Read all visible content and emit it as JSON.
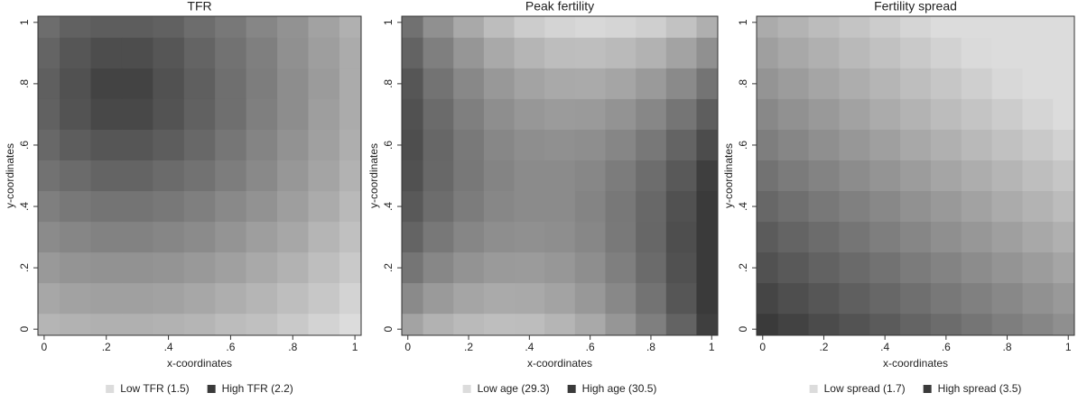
{
  "chart_data": [
    {
      "type": "contour",
      "title": "TFR",
      "xlabel": "x-coordinates",
      "ylabel": "y-coordinates",
      "xlim": [
        -0.02,
        1.02
      ],
      "ylim": [
        -0.02,
        1.02
      ],
      "xticks": [
        0,
        {
          "value": 0.2,
          "label": ".2"
        },
        {
          "value": 0.4,
          "label": ".4"
        },
        {
          "value": 0.6,
          "label": ".6"
        },
        {
          "value": 0.8,
          "label": ".8"
        },
        1
      ],
      "yticks": [
        0,
        {
          "value": 0.2,
          "label": ".2"
        },
        {
          "value": 0.4,
          "label": ".4"
        },
        {
          "value": 0.6,
          "label": ".6"
        },
        {
          "value": 0.8,
          "label": ".8"
        },
        1
      ],
      "zlim": [
        1.5,
        2.2
      ],
      "colors": [
        "#dcdcdc",
        "#3a3a3a"
      ],
      "legend": [
        {
          "label": "Low TFR (1.5)",
          "color": "#dcdcdc"
        },
        {
          "label": "High TFR (2.2)",
          "color": "#3a3a3a"
        }
      ],
      "x": [
        0,
        0.1,
        0.2,
        0.3,
        0.4,
        0.5,
        0.6,
        0.7,
        0.8,
        0.9,
        1
      ],
      "y": [
        1,
        0.9,
        0.8,
        0.7,
        0.6,
        0.5,
        0.4,
        0.3,
        0.2,
        0.1,
        0
      ],
      "z": [
        [
          1.98,
          2.03,
          2.05,
          2.05,
          2.03,
          1.98,
          1.93,
          1.87,
          1.82,
          1.75,
          1.69
        ],
        [
          2.02,
          2.08,
          2.12,
          2.12,
          2.08,
          2.02,
          1.96,
          1.9,
          1.83,
          1.77,
          1.71
        ],
        [
          2.04,
          2.1,
          2.16,
          2.16,
          2.1,
          2.04,
          1.97,
          1.91,
          1.84,
          1.78,
          1.71
        ],
        [
          2.03,
          2.09,
          2.14,
          2.14,
          2.09,
          2.03,
          1.97,
          1.9,
          1.84,
          1.77,
          1.71
        ],
        [
          2.0,
          2.05,
          2.08,
          2.08,
          2.05,
          2.0,
          1.94,
          1.88,
          1.82,
          1.76,
          1.7
        ],
        [
          1.96,
          1.99,
          2.02,
          2.02,
          1.99,
          1.96,
          1.91,
          1.86,
          1.8,
          1.74,
          1.68
        ],
        [
          1.9,
          1.93,
          1.95,
          1.95,
          1.93,
          1.9,
          1.86,
          1.82,
          1.77,
          1.71,
          1.65
        ],
        [
          1.85,
          1.87,
          1.89,
          1.89,
          1.87,
          1.85,
          1.81,
          1.77,
          1.73,
          1.67,
          1.62
        ],
        [
          1.79,
          1.81,
          1.82,
          1.82,
          1.81,
          1.79,
          1.76,
          1.72,
          1.68,
          1.63,
          1.58
        ],
        [
          1.73,
          1.75,
          1.76,
          1.76,
          1.75,
          1.73,
          1.7,
          1.67,
          1.63,
          1.59,
          1.54
        ],
        [
          1.67,
          1.68,
          1.69,
          1.69,
          1.68,
          1.67,
          1.64,
          1.62,
          1.58,
          1.54,
          1.5
        ]
      ]
    },
    {
      "type": "contour",
      "title": "Peak fertility",
      "xlabel": "x-coordinates",
      "ylabel": "y-coordinates",
      "xlim": [
        -0.02,
        1.02
      ],
      "ylim": [
        -0.02,
        1.02
      ],
      "xticks": [
        0,
        {
          "value": 0.2,
          "label": ".2"
        },
        {
          "value": 0.4,
          "label": ".4"
        },
        {
          "value": 0.6,
          "label": ".6"
        },
        {
          "value": 0.8,
          "label": ".8"
        },
        1
      ],
      "yticks": [
        0,
        {
          "value": 0.2,
          "label": ".2"
        },
        {
          "value": 0.4,
          "label": ".4"
        },
        {
          "value": 0.6,
          "label": ".6"
        },
        {
          "value": 0.8,
          "label": ".8"
        },
        1
      ],
      "zlim": [
        29.3,
        30.5
      ],
      "colors": [
        "#dcdcdc",
        "#3a3a3a"
      ],
      "legend": [
        {
          "label": "Low age (29.3)",
          "color": "#dcdcdc"
        },
        {
          "label": "High age (30.5)",
          "color": "#3a3a3a"
        }
      ],
      "x": [
        0,
        0.1,
        0.2,
        0.3,
        0.4,
        0.5,
        0.6,
        0.7,
        0.8,
        0.9,
        1
      ],
      "y": [
        1,
        0.9,
        0.8,
        0.7,
        0.6,
        0.5,
        0.4,
        0.3,
        0.2,
        0.1,
        0
      ],
      "z": [
        [
          30.09,
          29.86,
          29.68,
          29.53,
          29.42,
          29.36,
          29.33,
          29.35,
          29.4,
          29.49,
          29.63
        ],
        [
          30.2,
          29.99,
          29.82,
          29.68,
          29.59,
          29.53,
          29.52,
          29.55,
          29.61,
          29.72,
          29.86
        ],
        [
          30.29,
          30.08,
          29.92,
          29.8,
          29.72,
          29.68,
          29.67,
          29.71,
          29.79,
          29.91,
          30.07
        ],
        [
          30.33,
          30.14,
          29.99,
          29.88,
          29.81,
          29.78,
          29.79,
          29.84,
          29.93,
          30.06,
          30.23
        ],
        [
          30.35,
          30.17,
          30.03,
          29.93,
          29.88,
          29.86,
          29.88,
          29.94,
          30.04,
          30.19,
          30.37
        ],
        [
          30.33,
          30.16,
          30.04,
          29.95,
          29.9,
          29.9,
          29.93,
          30.01,
          30.12,
          30.27,
          30.47
        ],
        [
          30.27,
          30.12,
          30.01,
          29.93,
          29.9,
          29.9,
          29.95,
          30.04,
          30.16,
          30.33,
          30.5
        ],
        [
          30.19,
          30.04,
          29.94,
          29.88,
          29.86,
          29.88,
          29.93,
          30.03,
          30.17,
          30.35,
          30.5
        ],
        [
          30.06,
          29.93,
          29.84,
          29.79,
          29.78,
          29.81,
          29.88,
          29.99,
          30.14,
          30.33,
          30.5
        ],
        [
          29.91,
          29.79,
          29.71,
          29.67,
          29.68,
          29.72,
          29.8,
          29.92,
          30.08,
          30.29,
          30.5
        ],
        [
          29.72,
          29.61,
          29.55,
          29.52,
          29.53,
          29.59,
          29.68,
          29.82,
          29.99,
          30.2,
          30.46
        ]
      ]
    },
    {
      "type": "contour",
      "title": "Fertility spread",
      "xlabel": "x-coordinates",
      "ylabel": "y-coordinates",
      "xlim": [
        -0.02,
        1.02
      ],
      "ylim": [
        -0.02,
        1.02
      ],
      "xticks": [
        0,
        {
          "value": 0.2,
          "label": ".2"
        },
        {
          "value": 0.4,
          "label": ".4"
        },
        {
          "value": 0.6,
          "label": ".6"
        },
        {
          "value": 0.8,
          "label": ".8"
        },
        1
      ],
      "yticks": [
        0,
        {
          "value": 0.2,
          "label": ".2"
        },
        {
          "value": 0.4,
          "label": ".4"
        },
        {
          "value": 0.6,
          "label": ".6"
        },
        {
          "value": 0.8,
          "label": ".8"
        },
        1
      ],
      "zlim": [
        1.7,
        3.5
      ],
      "colors": [
        "#dcdcdc",
        "#3a3a3a"
      ],
      "legend": [
        {
          "label": "Low spread (1.7)",
          "color": "#dcdcdc"
        },
        {
          "label": "High spread (3.5)",
          "color": "#3a3a3a"
        }
      ],
      "x": [
        0,
        0.1,
        0.2,
        0.3,
        0.4,
        0.5,
        0.6,
        0.7,
        0.8,
        0.9,
        1
      ],
      "y": [
        1,
        0.9,
        0.8,
        0.7,
        0.6,
        0.5,
        0.4,
        0.3,
        0.2,
        0.1,
        0
      ],
      "z": [
        [
          2.25,
          2.16,
          2.06,
          1.97,
          1.88,
          1.78,
          1.7,
          1.7,
          1.7,
          1.7,
          1.7
        ],
        [
          2.38,
          2.28,
          2.19,
          2.09,
          2.0,
          1.91,
          1.81,
          1.72,
          1.7,
          1.7,
          1.7
        ],
        [
          2.5,
          2.41,
          2.31,
          2.22,
          2.13,
          2.03,
          1.94,
          1.84,
          1.75,
          1.7,
          1.7
        ],
        [
          2.63,
          2.53,
          2.44,
          2.34,
          2.25,
          2.16,
          2.06,
          1.97,
          1.88,
          1.78,
          1.7
        ],
        [
          2.75,
          2.66,
          2.56,
          2.47,
          2.38,
          2.28,
          2.19,
          2.09,
          2.0,
          1.91,
          1.81
        ],
        [
          2.88,
          2.78,
          2.69,
          2.59,
          2.5,
          2.41,
          2.31,
          2.22,
          2.13,
          2.03,
          1.94
        ],
        [
          3.0,
          2.91,
          2.81,
          2.72,
          2.63,
          2.53,
          2.44,
          2.34,
          2.25,
          2.16,
          2.06
        ],
        [
          3.13,
          3.03,
          2.94,
          2.84,
          2.75,
          2.66,
          2.56,
          2.47,
          2.38,
          2.28,
          2.19
        ],
        [
          3.25,
          3.16,
          3.06,
          2.97,
          2.88,
          2.78,
          2.69,
          2.59,
          2.5,
          2.41,
          2.31
        ],
        [
          3.38,
          3.28,
          3.19,
          3.09,
          3.0,
          2.91,
          2.81,
          2.72,
          2.63,
          2.53,
          2.44
        ],
        [
          3.5,
          3.41,
          3.31,
          3.22,
          3.13,
          3.03,
          2.94,
          2.84,
          2.75,
          2.66,
          2.56
        ]
      ]
    }
  ]
}
